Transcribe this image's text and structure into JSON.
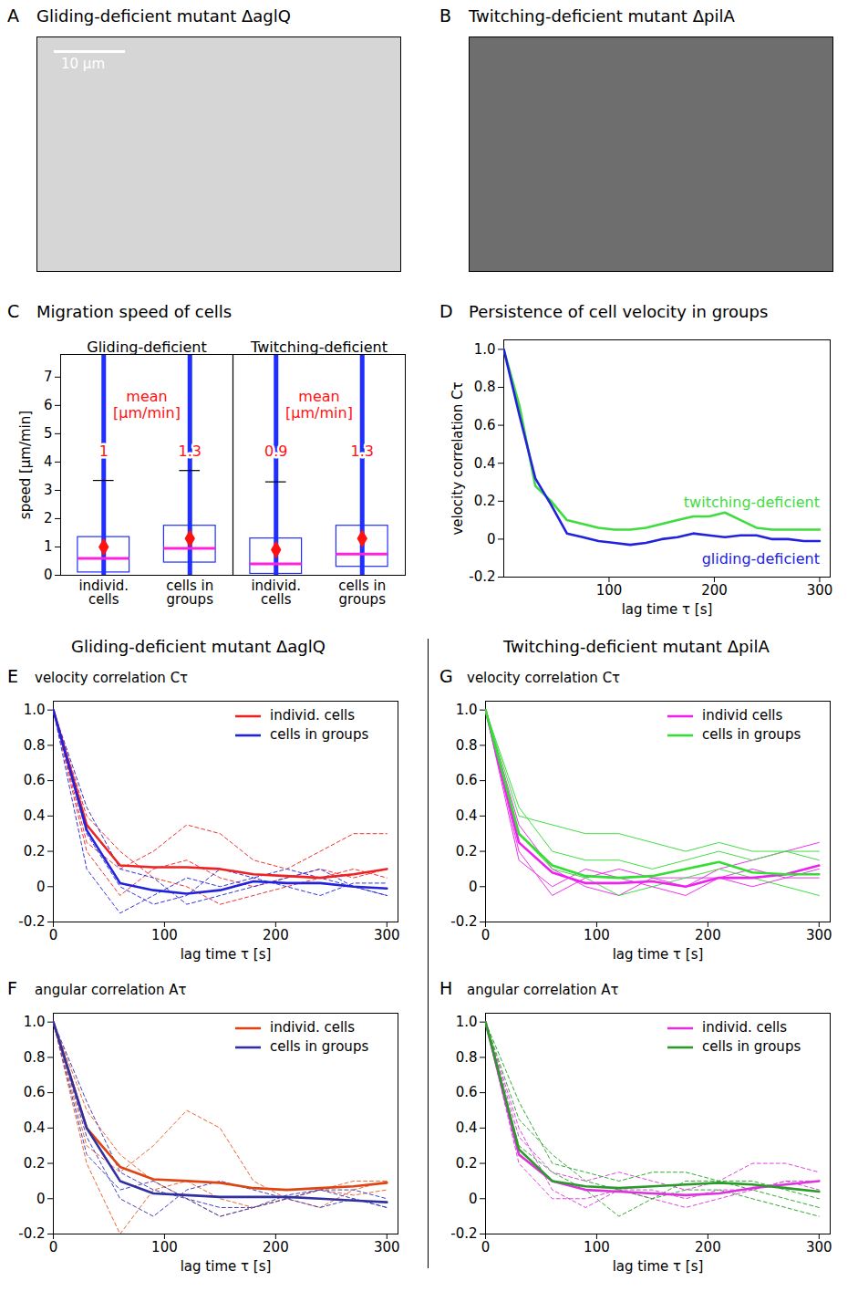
{
  "chart_data": [
    {
      "panel": "A",
      "type": "image",
      "title": "Gliding-deficient mutant ΔaglQ",
      "scale_bar": "10 μm",
      "color": "#d6d6d6"
    },
    {
      "panel": "B",
      "type": "image",
      "title": "Twitching-deficient mutant ΔpilA",
      "color": "#6e6e6e"
    },
    {
      "panel": "C",
      "type": "box",
      "title": "Migration speed of cells",
      "y_label": "speed [μm/min]",
      "groups": [
        "Gliding-deficient",
        "Twitching-deficient"
      ],
      "categories": [
        "individ. cells",
        "cells in groups",
        "individ. cells",
        "cells in groups"
      ],
      "min": [
        0,
        0,
        0,
        0
      ],
      "q1": [
        0.1,
        0.45,
        0.05,
        0.3
      ],
      "median": [
        0.6,
        0.95,
        0.4,
        0.75
      ],
      "q3": [
        1.35,
        1.75,
        1.3,
        1.75
      ],
      "whisker": [
        3.35,
        3.7,
        3.3,
        4.2
      ],
      "max": [
        7.8,
        7.8,
        7.8,
        7.8
      ],
      "mean_label": "mean [μm/min]",
      "mean": [
        1,
        1.3,
        0.9,
        1.3
      ],
      "data_labels": true,
      "color": "#1f2fff",
      "ylim": [
        0,
        7.8
      ],
      "yticks": [
        0,
        1,
        2,
        3,
        4,
        5,
        6,
        7
      ]
    },
    {
      "panel": "D",
      "type": "line",
      "title": "Persistence of cell velocity in groups",
      "x_label": "lag time τ [s]",
      "y_label": "velocity correlation Cτ",
      "x": [
        0,
        15,
        30,
        45,
        60,
        75,
        90,
        105,
        120,
        135,
        150,
        165,
        180,
        195,
        210,
        225,
        240,
        255,
        270,
        285,
        300
      ],
      "xlim": [
        0,
        310
      ],
      "xticks": [
        100,
        200,
        300
      ],
      "ylim": [
        -0.2,
        1.05
      ],
      "yticks": [
        -0.2,
        0,
        0.2,
        0.4,
        0.6,
        0.8,
        {
          "value": 1,
          "label": "1.0"
        }
      ],
      "series": [
        {
          "name": "twitching-deficient",
          "color": "#3fdc3f",
          "line_style": "solid",
          "values": [
            1,
            0.7,
            0.28,
            0.2,
            0.1,
            0.08,
            0.06,
            0.05,
            0.05,
            0.06,
            0.08,
            0.1,
            0.12,
            0.12,
            0.14,
            0.1,
            0.06,
            0.05,
            0.05,
            0.05,
            0.05
          ]
        },
        {
          "name": "gliding-deficient",
          "color": "#2222dd",
          "line_style": "solid",
          "values": [
            1,
            0.65,
            0.32,
            0.18,
            0.03,
            0.01,
            -0.01,
            -0.02,
            -0.03,
            -0.02,
            0,
            0.01,
            0.03,
            0.02,
            0.01,
            0.02,
            0.02,
            0,
            0,
            -0.01,
            -0.01
          ]
        }
      ]
    },
    {
      "panel": "E",
      "type": "line",
      "title": "Gliding-deficient mutant ΔaglQ",
      "x_label": "lag time τ [s]",
      "y_label": "velocity correlation Cτ",
      "legend": "upper right",
      "x": [
        0,
        30,
        60,
        90,
        120,
        150,
        180,
        210,
        240,
        270,
        300
      ],
      "xlim": [
        0,
        310
      ],
      "xticks": [
        0,
        100,
        200,
        300
      ],
      "ylim": [
        -0.2,
        1.05
      ],
      "yticks": [
        -0.2,
        0,
        0.2,
        0.4,
        0.6,
        0.8,
        {
          "value": 1,
          "label": "1.0"
        }
      ],
      "series": [
        {
          "color": "#ee3333",
          "line_style": "dashed",
          "values": [
            1,
            0.25,
            0.1,
            0.2,
            0.35,
            0.3,
            0.15,
            0.1,
            0.2,
            0.3,
            0.3
          ]
        },
        {
          "color": "#ee3333",
          "line_style": "dashed",
          "values": [
            1,
            0.2,
            -0.05,
            0.1,
            0.15,
            0.05,
            0,
            0.05,
            0.1,
            0.05,
            0.1
          ]
        },
        {
          "color": "#ee3333",
          "line_style": "dashed",
          "values": [
            1,
            0.4,
            0.2,
            0.05,
            0,
            -0.1,
            -0.05,
            0,
            0.05,
            0.1,
            0.05
          ]
        },
        {
          "color": "#3333dd",
          "line_style": "dashed",
          "values": [
            1,
            0.1,
            -0.15,
            -0.05,
            0.05,
            0,
            0.05,
            0.1,
            0.05,
            0,
            -0.05
          ]
        },
        {
          "color": "#3333dd",
          "line_style": "dashed",
          "values": [
            1,
            0.3,
            0,
            -0.1,
            -0.05,
            0.1,
            0.05,
            0,
            -0.05,
            0.02,
            0.02
          ]
        },
        {
          "color": "#3333dd",
          "line_style": "dashed",
          "values": [
            1,
            0.45,
            0.1,
            0.05,
            -0.1,
            -0.05,
            0,
            0.05,
            0.1,
            0,
            -0.05
          ]
        },
        {
          "name": "individ. cells",
          "color": "#ee2222",
          "line_style": "solid",
          "values": [
            1,
            0.35,
            0.12,
            0.11,
            0.11,
            0.1,
            0.07,
            0.06,
            0.05,
            0.07,
            0.1
          ]
        },
        {
          "name": "cells in groups",
          "color": "#2222dd",
          "line_style": "solid",
          "values": [
            1,
            0.32,
            0.02,
            -0.02,
            -0.04,
            -0.02,
            0.03,
            0.02,
            0.02,
            0,
            -0.01
          ]
        }
      ]
    },
    {
      "panel": "F",
      "type": "line",
      "x_label": "lag time τ [s]",
      "y_label": "angular correlation Aτ",
      "legend": "upper right",
      "x": [
        0,
        30,
        60,
        90,
        120,
        150,
        180,
        210,
        240,
        270,
        300
      ],
      "xlim": [
        0,
        310
      ],
      "xticks": [
        0,
        100,
        200,
        300
      ],
      "ylim": [
        -0.2,
        1.05
      ],
      "yticks": [
        -0.2,
        0,
        0.2,
        0.4,
        0.6,
        0.8,
        {
          "value": 1,
          "label": "1.0"
        }
      ],
      "series": [
        {
          "color": "#ee6633",
          "line_style": "dashed",
          "values": [
            1,
            0.3,
            0.15,
            0.3,
            0.5,
            0.4,
            0.1,
            0,
            0.05,
            0.1,
            0.1
          ]
        },
        {
          "color": "#ee6633",
          "line_style": "dashed",
          "values": [
            1,
            0.2,
            -0.2,
            0.05,
            0.1,
            0,
            -0.05,
            0,
            0.05,
            0.02,
            0.05
          ]
        },
        {
          "color": "#ee6633",
          "line_style": "dashed",
          "values": [
            1,
            0.5,
            0.25,
            0.1,
            0,
            -0.1,
            -0.05,
            0,
            -0.05,
            0.05,
            0.1
          ]
        },
        {
          "color": "#4444bb",
          "line_style": "dashed",
          "values": [
            1,
            0.55,
            0.15,
            0.05,
            0,
            -0.1,
            -0.05,
            0,
            0.05,
            0.05,
            0
          ]
        },
        {
          "color": "#4444bb",
          "line_style": "dashed",
          "values": [
            1,
            0.35,
            0,
            -0.1,
            0.05,
            0.1,
            0.05,
            0,
            -0.05,
            0,
            -0.05
          ]
        },
        {
          "color": "#4444bb",
          "line_style": "dashed",
          "values": [
            1,
            0.25,
            0.05,
            0.1,
            0,
            -0.05,
            -0.05,
            0.02,
            0.05,
            0,
            -0.05
          ]
        },
        {
          "name": "individ. cells",
          "color": "#dd4411",
          "line_style": "solid",
          "values": [
            1,
            0.4,
            0.18,
            0.11,
            0.1,
            0.09,
            0.06,
            0.05,
            0.06,
            0.07,
            0.09
          ]
        },
        {
          "name": "cells in groups",
          "color": "#3030a0",
          "line_style": "solid",
          "values": [
            1,
            0.4,
            0.1,
            0.03,
            0.02,
            0.01,
            0.01,
            0.01,
            0,
            -0.01,
            -0.02
          ]
        }
      ]
    },
    {
      "panel": "G",
      "type": "line",
      "title": "Twitching-deficient mutant ΔpilA",
      "x_label": "lag time τ [s]",
      "y_label": "velocity correlation Cτ",
      "legend": "upper right",
      "x": [
        0,
        30,
        60,
        90,
        120,
        150,
        180,
        210,
        240,
        270,
        300
      ],
      "xlim": [
        0,
        310
      ],
      "xticks": [
        0,
        100,
        200,
        300
      ],
      "ylim": [
        -0.2,
        1.05
      ],
      "yticks": [
        -0.2,
        0,
        0.2,
        0.4,
        0.6,
        0.8,
        {
          "value": 1,
          "label": "1.0"
        }
      ],
      "series": [
        {
          "color": "#ee33ee",
          "line_style": "solid",
          "values": [
            1,
            0.2,
            -0.05,
            0.05,
            0.1,
            0.05,
            0,
            0.1,
            0.15,
            0.2,
            0.25
          ]
        },
        {
          "color": "#ee33ee",
          "line_style": "solid",
          "values": [
            1,
            0.35,
            0.1,
            0,
            -0.05,
            0.05,
            0.05,
            0.05,
            0,
            0.05,
            0.1
          ]
        },
        {
          "color": "#ee33ee",
          "line_style": "solid",
          "values": [
            1,
            0.15,
            0,
            0.1,
            0.05,
            0,
            -0.05,
            0.05,
            0.1,
            0.05,
            0.05
          ]
        },
        {
          "color": "#44dd44",
          "line_style": "solid",
          "values": [
            1,
            0.4,
            0.35,
            0.3,
            0.3,
            0.25,
            0.2,
            0.25,
            0.2,
            0.2,
            0.2
          ]
        },
        {
          "color": "#44dd44",
          "line_style": "solid",
          "values": [
            1,
            0.3,
            0.1,
            0.05,
            -0.05,
            0,
            0.05,
            0.1,
            0.05,
            0,
            -0.05
          ]
        },
        {
          "color": "#44dd44",
          "line_style": "solid",
          "values": [
            1,
            0.45,
            0.2,
            0.15,
            0.15,
            0.1,
            0.15,
            0.2,
            0.15,
            0.2,
            0.15
          ]
        },
        {
          "name": "individ cells",
          "color": "#ee22ee",
          "line_style": "solid",
          "values": [
            1,
            0.25,
            0.08,
            0.02,
            0.02,
            0.03,
            0,
            0.05,
            0.05,
            0.07,
            0.12
          ]
        },
        {
          "name": "cells in groups",
          "color": "#33dd33",
          "line_style": "solid",
          "values": [
            1,
            0.3,
            0.12,
            0.06,
            0.05,
            0.06,
            0.1,
            0.14,
            0.08,
            0.07,
            0.07
          ]
        }
      ]
    },
    {
      "panel": "H",
      "type": "line",
      "x_label": "lag time τ [s]",
      "y_label": "angular correlation Aτ",
      "legend": "upper right",
      "x": [
        0,
        30,
        60,
        90,
        120,
        150,
        180,
        210,
        240,
        270,
        300
      ],
      "xlim": [
        0,
        310
      ],
      "xticks": [
        0,
        100,
        200,
        300
      ],
      "ylim": [
        -0.2,
        1.05
      ],
      "yticks": [
        -0.2,
        0,
        0.2,
        0.4,
        0.6,
        0.8,
        {
          "value": 1,
          "label": "1.0"
        }
      ],
      "series": [
        {
          "color": "#dd44dd",
          "line_style": "dashed",
          "values": [
            1,
            0.35,
            0.15,
            0.1,
            0.15,
            0.1,
            0.05,
            0.1,
            0.2,
            0.2,
            0.15
          ]
        },
        {
          "color": "#dd44dd",
          "line_style": "dashed",
          "values": [
            1,
            0.2,
            0,
            0,
            0.05,
            0,
            -0.05,
            0,
            0.05,
            0.1,
            0.05
          ]
        },
        {
          "color": "#dd44dd",
          "line_style": "dashed",
          "values": [
            1,
            0.4,
            0.05,
            -0.05,
            0.05,
            0.05,
            0,
            0.05,
            0.05,
            0.1,
            0.1
          ]
        },
        {
          "color": "#33aa33",
          "line_style": "dashed",
          "values": [
            1,
            0.55,
            0.2,
            0.15,
            0.1,
            0.15,
            0.15,
            0.1,
            0.05,
            0,
            -0.05
          ]
        },
        {
          "color": "#33aa33",
          "line_style": "dashed",
          "values": [
            1,
            0.3,
            0.15,
            0.05,
            -0.1,
            0,
            0.1,
            0.1,
            0.1,
            0.05,
            0
          ]
        },
        {
          "color": "#33aa33",
          "line_style": "dashed",
          "values": [
            1,
            0.45,
            0.25,
            0.1,
            0.05,
            0,
            0.05,
            0.05,
            0,
            -0.05,
            -0.1
          ]
        },
        {
          "name": "individ. cells",
          "color": "#dd33dd",
          "line_style": "solid",
          "values": [
            1,
            0.25,
            0.1,
            0.05,
            0.04,
            0.03,
            0.02,
            0.03,
            0.06,
            0.08,
            0.1
          ]
        },
        {
          "name": "cells in groups",
          "color": "#2a9a2a",
          "line_style": "solid",
          "values": [
            1,
            0.28,
            0.1,
            0.07,
            0.06,
            0.07,
            0.08,
            0.09,
            0.08,
            0.06,
            0.04
          ]
        }
      ]
    }
  ]
}
